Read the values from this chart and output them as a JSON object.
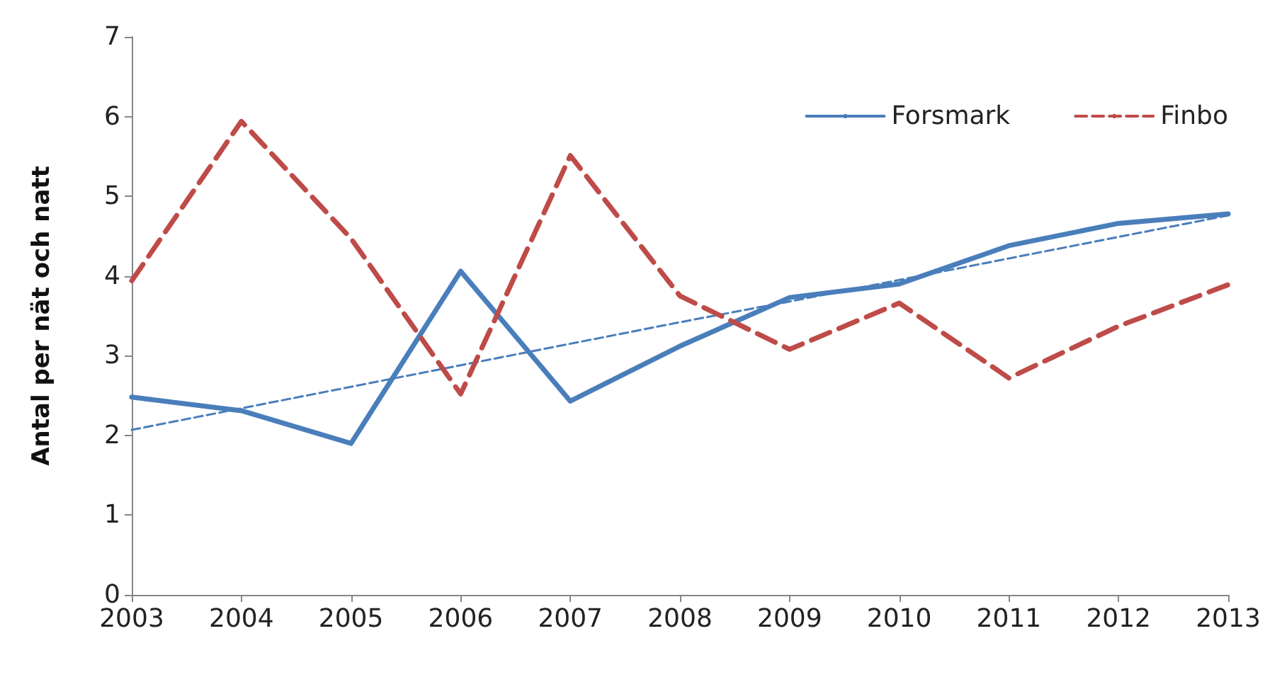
{
  "chart_data": {
    "type": "line",
    "ylabel": "Antal per nät och natt",
    "categories": [
      "2003",
      "2004",
      "2005",
      "2006",
      "2007",
      "2008",
      "2009",
      "2010",
      "2011",
      "2012",
      "2013"
    ],
    "ylim": [
      0,
      7
    ],
    "yticks": [
      0,
      1,
      2,
      3,
      4,
      5,
      6,
      7
    ],
    "grid": false,
    "legend": "top right",
    "marker": "none",
    "series": [
      {
        "name": "Forsmark",
        "color": "#4a7ebb",
        "line_style": "solid",
        "values": [
          2.48,
          2.31,
          1.9,
          4.06,
          2.43,
          3.12,
          3.73,
          3.9,
          4.38,
          4.66,
          4.78
        ]
      },
      {
        "name": "Finbo",
        "color": "#be4b48",
        "line_style": "dashed",
        "values": [
          3.94,
          5.94,
          4.47,
          2.52,
          5.51,
          3.75,
          3.08,
          3.66,
          2.72,
          3.37,
          3.89
        ]
      },
      {
        "color": "#4a7ebb",
        "line_style": "dashed",
        "values": [
          2.07,
          2.34,
          2.61,
          2.88,
          3.15,
          3.42,
          3.68,
          3.95,
          4.22,
          4.49,
          4.76
        ]
      }
    ]
  }
}
